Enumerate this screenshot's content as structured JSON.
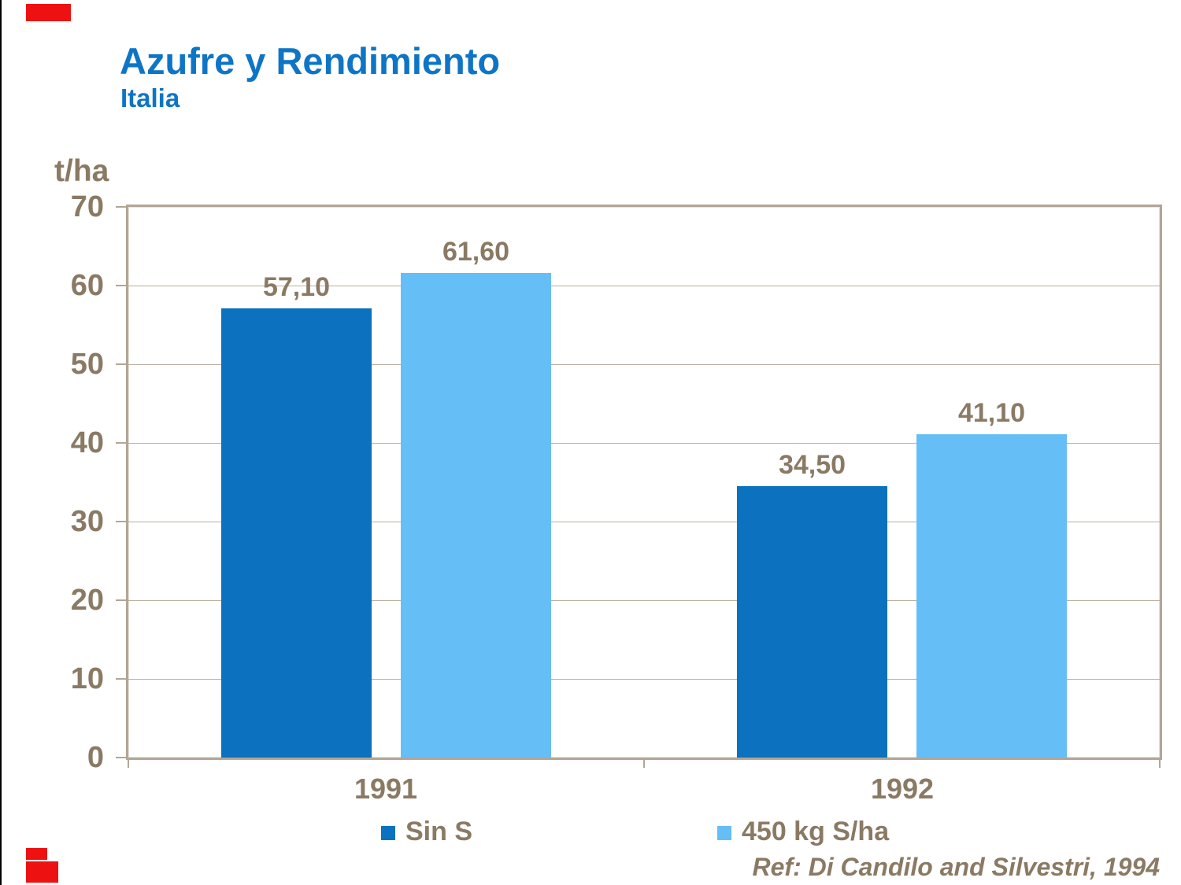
{
  "page": {
    "title": "Azufre y Rendimiento",
    "subtitle": "Italia",
    "reference": "Ref: Di Candilo and Silvestri, 1994"
  },
  "colors": {
    "title_blue": "#0e75c6",
    "text_brown": "#8a7a64",
    "plot_border_tan": "#b3a697",
    "gridline": "#bbaf9f",
    "series_dark_blue": "#0c71be",
    "series_light_blue": "#66bef6",
    "corner_red": "#ee1111"
  },
  "chart_data": {
    "type": "bar",
    "title": "Azufre y Rendimiento",
    "subtitle": "Italia",
    "ylabel": "t/ha",
    "ylim": [
      0,
      70
    ],
    "ytick_step": 10,
    "yticks": [
      "70",
      "60",
      "50",
      "40",
      "30",
      "20",
      "10",
      "0"
    ],
    "grid": true,
    "legend_position": "bottom",
    "categories": [
      "1991",
      "1992"
    ],
    "series": [
      {
        "name": "Sin S",
        "color": "#0c71be",
        "values": [
          57.1,
          34.5
        ],
        "labels": [
          "57,10",
          "34,50"
        ]
      },
      {
        "name": "450 kg S/ha",
        "color": "#66bef6",
        "values": [
          61.6,
          41.1
        ],
        "labels": [
          "61,60",
          "41,10"
        ]
      }
    ]
  }
}
